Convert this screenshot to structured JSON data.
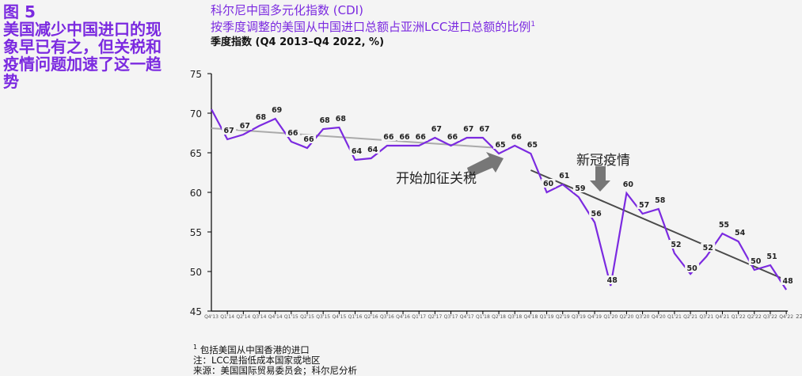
{
  "figure": {
    "number": "图 5",
    "headline": "美国减少中国进口的现象早已有之，但关税和疫情问题加速了这一趋势"
  },
  "chart_title": {
    "line1": "科尔尼中国多元化指数 (CDI)",
    "line2": "按季度调整的美国从中国进口总额占亚洲LCC进口总额的比例",
    "line2_sup": "1",
    "subtitle": "季度指数 (Q4 2013–Q4 2022, %)"
  },
  "annotations": {
    "tariff": "开始加征关税",
    "covid": "新冠疫情"
  },
  "notes": {
    "footnote_marker": "1",
    "footnote": "包括美国从中国香港的进口",
    "note": "注：LCC是指低成本国家或地区",
    "source": "来源：美国国际贸易委员会；科尔尼分析"
  },
  "colors": {
    "accent": "#7b2ae0",
    "series": "#7b2ae0",
    "trend_pre": "#aaaaaa",
    "trend_post": "#4a4a4a",
    "arrow": "#777777"
  },
  "chart_data": {
    "type": "line",
    "title": "科尔尼中国多元化指数 (CDI)",
    "subtitle": "季度指数 (Q4 2013–Q4 2022, %)",
    "xlabel": "",
    "ylabel": "",
    "ylim": [
      45,
      75
    ],
    "yticks": [
      45,
      50,
      55,
      60,
      65,
      70,
      75
    ],
    "grid": false,
    "categories": [
      "Q4'13",
      "Q1'14",
      "Q2'14",
      "Q3'14",
      "Q4'14",
      "Q1'15",
      "Q2'15",
      "Q3'15",
      "Q4'15",
      "Q1'16",
      "Q2'16",
      "Q3'16",
      "Q4'16",
      "Q1'17",
      "Q2'17",
      "Q3'17",
      "Q4'17",
      "Q1'18",
      "Q2'18",
      "Q3'18",
      "Q4'18",
      "Q1'19",
      "Q2'19",
      "Q3'19",
      "Q4'19",
      "Q1'20",
      "Q2'20",
      "Q3'20",
      "Q4'20",
      "Q1'21",
      "Q2'21",
      "Q3'21",
      "Q4'21",
      "Q1'22",
      "Q2'22",
      "Q3'22",
      "Q4'22"
    ],
    "series": [
      {
        "name": "CDI",
        "values": [
          70.5,
          66.7,
          67.3,
          68.4,
          69.3,
          66.4,
          65.6,
          68.0,
          68.2,
          64.1,
          64.3,
          65.9,
          65.9,
          65.9,
          66.9,
          65.9,
          66.9,
          66.9,
          64.9,
          65.9,
          64.9,
          60.0,
          61.0,
          59.4,
          56.2,
          48.2,
          59.9,
          57.3,
          57.9,
          52.3,
          49.7,
          51.9,
          54.8,
          53.8,
          50.2,
          50.8,
          47.7
        ],
        "labels": [
          "",
          67,
          67,
          68,
          69,
          66,
          66,
          68,
          68,
          64,
          64,
          66,
          66,
          66,
          67,
          66,
          67,
          67,
          65,
          66,
          65,
          60,
          61,
          59,
          56,
          48,
          60,
          57,
          58,
          52,
          50,
          52,
          55,
          54,
          50,
          51,
          48
        ]
      },
      {
        "name": "Trend (pre-tariff)",
        "points": [
          [
            "Q4'13",
            68.1
          ],
          [
            "Q2'18",
            65.6
          ]
        ]
      },
      {
        "name": "Trend (post-tariff)",
        "points": [
          [
            "Q4'18",
            62.8
          ],
          [
            "Q4'22",
            48.9
          ]
        ]
      }
    ],
    "annotations": [
      {
        "text": "开始加征关税",
        "at": "Q2'18"
      },
      {
        "text": "新冠疫情",
        "at": "Q4'19"
      }
    ]
  }
}
